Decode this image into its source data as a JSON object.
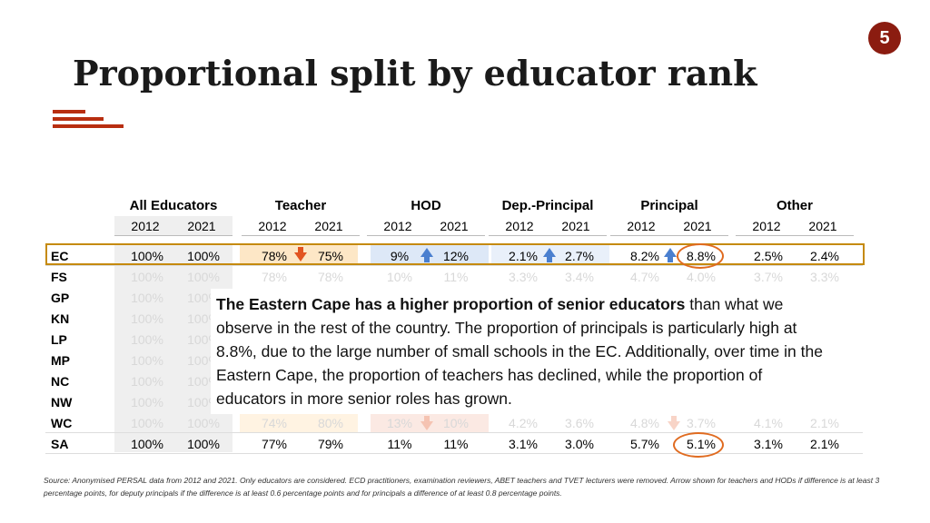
{
  "slide_number": "5",
  "title": "Proportional split by educator rank",
  "columns": [
    {
      "name": "All Educators",
      "years": [
        "2012",
        "2021"
      ]
    },
    {
      "name": "Teacher",
      "years": [
        "2012",
        "2021"
      ]
    },
    {
      "name": "HOD",
      "years": [
        "2012",
        "2021"
      ]
    },
    {
      "name": "Dep.-Principal",
      "years": [
        "2012",
        "2021"
      ]
    },
    {
      "name": "Principal",
      "years": [
        "2012",
        "2021"
      ]
    },
    {
      "name": "Other",
      "years": [
        "2012",
        "2021"
      ]
    }
  ],
  "rows": [
    {
      "label": "EC",
      "values": [
        "100%",
        "100%",
        "78%",
        "75%",
        "9%",
        "12%",
        "2.1%",
        "2.7%",
        "8.2%",
        "8.8%",
        "2.5%",
        "2.4%"
      ]
    },
    {
      "label": "FS",
      "values": [
        "100%",
        "100%",
        "78%",
        "78%",
        "10%",
        "11%",
        "3.3%",
        "3.4%",
        "4.7%",
        "4.0%",
        "3.7%",
        "3.3%"
      ]
    },
    {
      "label": "GP",
      "values": [
        "100%",
        "100%",
        "",
        "",
        "",
        "",
        "",
        "",
        "",
        "",
        "",
        "%"
      ]
    },
    {
      "label": "KN",
      "values": [
        "100%",
        "100%",
        "",
        "",
        "",
        "",
        "",
        "",
        "",
        "",
        "",
        "%"
      ]
    },
    {
      "label": "LP",
      "values": [
        "100%",
        "100%",
        "",
        "",
        "",
        "",
        "",
        "",
        "",
        "",
        "",
        "%"
      ]
    },
    {
      "label": "MP",
      "values": [
        "100%",
        "100%",
        "",
        "",
        "",
        "",
        "",
        "",
        "",
        "",
        "",
        "%"
      ]
    },
    {
      "label": "NC",
      "values": [
        "100%",
        "100%",
        "",
        "",
        "",
        "",
        "",
        "",
        "",
        "",
        "",
        "%"
      ]
    },
    {
      "label": "NW",
      "values": [
        "100%",
        "100%",
        "",
        "",
        "",
        "",
        "",
        "",
        "",
        "",
        "",
        "%"
      ]
    },
    {
      "label": "WC",
      "values": [
        "100%",
        "100%",
        "74%",
        "80%",
        "13%",
        "10%",
        "4.2%",
        "3.6%",
        "4.8%",
        "3.7%",
        "4.1%",
        "2.1%"
      ]
    },
    {
      "label": "SA",
      "values": [
        "100%",
        "100%",
        "77%",
        "79%",
        "11%",
        "11%",
        "3.1%",
        "3.0%",
        "5.7%",
        "5.1%",
        "3.1%",
        "2.1%"
      ]
    }
  ],
  "callout": {
    "bold": "The Eastern Cape has a higher proportion of senior educators",
    "rest": " than what we observe in the rest of the country. The proportion of principals is particularly high at 8.8%, due to the large number of small schools in the EC. Additionally, over time in the Eastern Cape, the proportion of teachers has declined, while the proportion of educators in more senior roles has grown."
  },
  "source": "Source: Anonymised PERSAL data from 2012 and 2021. Only educators are considered. ECD practitioners, examination reviewers, ABET teachers and TVET lecturers were removed. Arrow shown for teachers and HODs if difference is at least 3 percentage points, for deputy principals if the difference is at least 0.6 percentage points and for principals a difference of at least 0.8 percentage points.",
  "colors": {
    "badge": "#8b1c10",
    "accent_lines": "#b82e10",
    "ec_box": "#c58a0e",
    "up_arrow": "#4a7fcf",
    "down_arrow": "#e25420",
    "circle": "#e06b20"
  },
  "icons": [
    "arrow-up-icon",
    "arrow-down-icon"
  ]
}
